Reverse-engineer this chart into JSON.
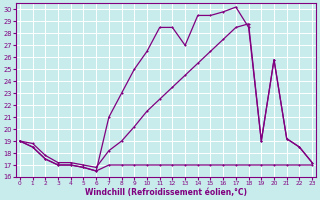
{
  "xlabel": "Windchill (Refroidissement éolien,°C)",
  "background_color": "#c8ecec",
  "line_color": "#800080",
  "grid_color": "#ffffff",
  "ylim": [
    16,
    30.5
  ],
  "xlim": [
    -0.3,
    23.3
  ],
  "yticks": [
    16,
    17,
    18,
    19,
    20,
    21,
    22,
    23,
    24,
    25,
    26,
    27,
    28,
    29,
    30
  ],
  "xticks": [
    0,
    1,
    2,
    3,
    4,
    5,
    6,
    7,
    8,
    9,
    10,
    11,
    12,
    13,
    14,
    15,
    16,
    17,
    18,
    19,
    20,
    21,
    22,
    23
  ],
  "line1_x": [
    0,
    1,
    2,
    3,
    4,
    5,
    6,
    7,
    8,
    9,
    10,
    11,
    12,
    13,
    14,
    15,
    16,
    17,
    18,
    19,
    20,
    21,
    22,
    23
  ],
  "line1_y": [
    19.0,
    18.5,
    17.5,
    17.0,
    17.0,
    16.8,
    16.5,
    17.0,
    17.0,
    17.0,
    17.0,
    17.0,
    17.0,
    17.0,
    17.0,
    17.0,
    17.0,
    17.0,
    17.0,
    17.0,
    17.0,
    17.0,
    17.0,
    17.0
  ],
  "line2_x": [
    0,
    1,
    2,
    3,
    4,
    5,
    6,
    7,
    8,
    9,
    10,
    11,
    12,
    13,
    14,
    15,
    16,
    17,
    18,
    19,
    20,
    21,
    22,
    23
  ],
  "line2_y": [
    19.0,
    18.5,
    17.5,
    17.0,
    17.0,
    16.8,
    16.5,
    21.0,
    23.0,
    25.0,
    26.5,
    28.5,
    28.5,
    27.0,
    29.5,
    29.5,
    29.8,
    30.2,
    28.5,
    19.0,
    25.8,
    19.2,
    18.5,
    17.2
  ],
  "line3_x": [
    0,
    1,
    2,
    3,
    4,
    5,
    6,
    7,
    8,
    9,
    10,
    11,
    12,
    13,
    14,
    15,
    16,
    17,
    18,
    19,
    20,
    21,
    22,
    23
  ],
  "line3_y": [
    19.0,
    18.8,
    17.8,
    17.2,
    17.2,
    17.0,
    16.8,
    18.2,
    19.0,
    20.2,
    21.5,
    22.5,
    23.5,
    24.5,
    25.5,
    26.5,
    27.5,
    28.5,
    28.8,
    19.0,
    25.8,
    19.2,
    18.5,
    17.2
  ]
}
